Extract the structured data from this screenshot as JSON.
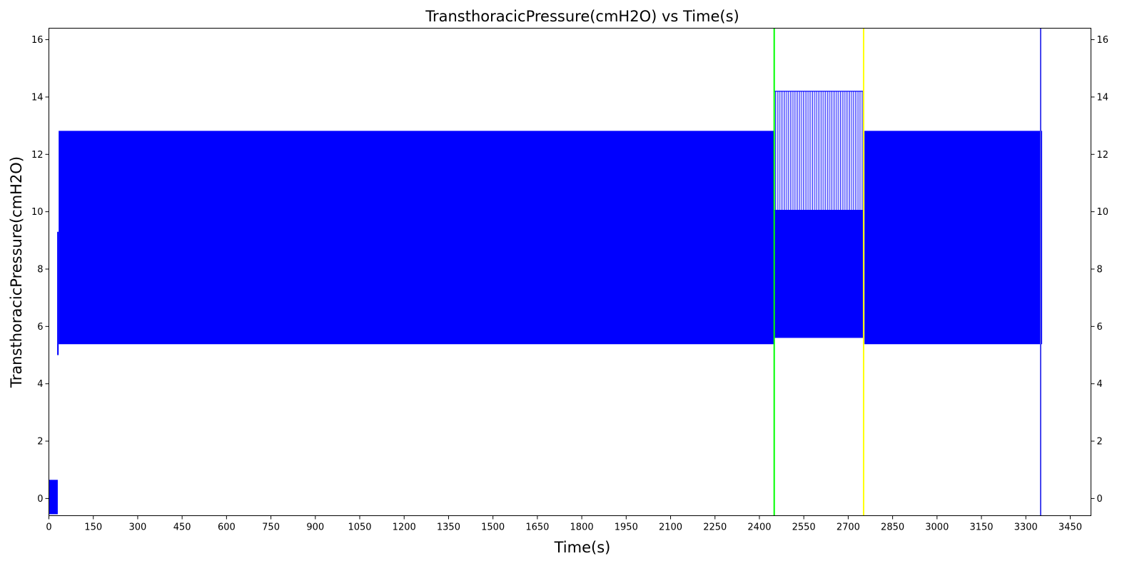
{
  "chart_data": {
    "type": "line",
    "title": "TransthoracicPressure(cmH2O) vs Time(s)",
    "xlabel": "Time(s)",
    "ylabel": "TransthoracicPressure(cmH2O)",
    "xlim": [
      0,
      3520
    ],
    "ylim": [
      -0.6,
      16.4
    ],
    "xticks": [
      0,
      150,
      300,
      450,
      600,
      750,
      900,
      1050,
      1200,
      1350,
      1500,
      1650,
      1800,
      1950,
      2100,
      2250,
      2400,
      2550,
      2700,
      2850,
      3000,
      3150,
      3300,
      3450
    ],
    "yticks": [
      0,
      2,
      4,
      6,
      8,
      10,
      12,
      14,
      16
    ],
    "grid": false,
    "right_axis_mirror": true,
    "series_color": "#0000ff",
    "segments": [
      {
        "x_start": 0,
        "x_end": 30,
        "low": -0.55,
        "high": 0.65
      },
      {
        "x_start": 28,
        "x_end": 33,
        "low": 5.0,
        "high": 9.3
      },
      {
        "x_start": 33,
        "x_end": 2450,
        "low": 5.38,
        "high": 12.82
      },
      {
        "x_start": 2452,
        "x_end": 2752,
        "low": 5.6,
        "high": 14.2,
        "inner_low": 10.05
      },
      {
        "x_start": 2755,
        "x_end": 3355,
        "low": 5.38,
        "high": 12.82
      }
    ],
    "vertical_lines": [
      {
        "x": 2450,
        "color": "#00ff00"
      },
      {
        "x": 2752,
        "color": "#ffff00"
      },
      {
        "x": 3350,
        "color": "#4444ee"
      }
    ]
  }
}
